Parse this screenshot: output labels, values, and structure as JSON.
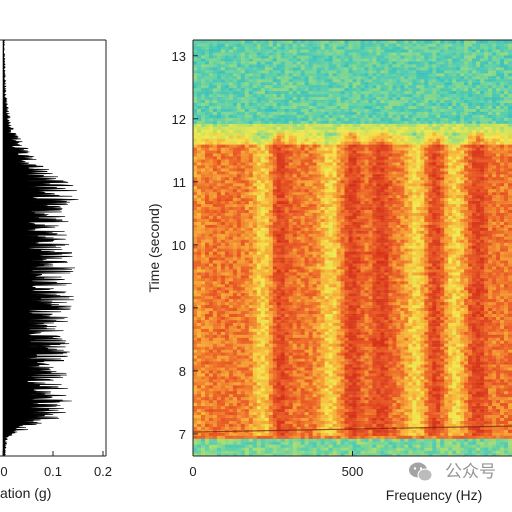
{
  "chart_data": [
    {
      "type": "line",
      "panel": "left",
      "description_of_series": "acceleration trace vs time",
      "xlabel": "ation (g)",
      "ylabel": "",
      "xlim": [
        0,
        0.2
      ],
      "ylim": [
        6.7,
        13.3
      ],
      "xticks": [
        0,
        0.1,
        0.2
      ],
      "xtick_labels": [
        "0",
        "0.1",
        "0.2"
      ],
      "envelope": {
        "t": [
          6.75,
          7.0,
          7.3,
          7.6,
          7.9,
          8.2,
          8.5,
          8.8,
          9.1,
          9.4,
          9.7,
          10.0,
          10.3,
          10.6,
          10.9,
          11.2,
          11.5,
          11.8,
          12.1,
          12.4,
          12.7,
          13.0,
          13.3
        ],
        "accel": [
          0.005,
          0.01,
          0.12,
          0.14,
          0.13,
          0.13,
          0.14,
          0.13,
          0.14,
          0.15,
          0.15,
          0.14,
          0.13,
          0.14,
          0.16,
          0.1,
          0.06,
          0.03,
          0.015,
          0.008,
          0.005,
          0.004,
          0.003
        ]
      }
    },
    {
      "type": "heatmap",
      "panel": "right",
      "xlabel": "Frequency (Hz)",
      "ylabel": "Time (second)",
      "xlim": [
        0,
        1000
      ],
      "ylim": [
        6.65,
        13.25
      ],
      "xticks": [
        0,
        500
      ],
      "xtick_labels": [
        "0",
        "500"
      ],
      "yticks": [
        7,
        8,
        9,
        10,
        11,
        12,
        13
      ],
      "ytick_labels": [
        "7",
        "8",
        "9",
        "10",
        "11",
        "12",
        "13"
      ],
      "colormap": [
        "#1fb8c8",
        "#5cd1a8",
        "#b8e060",
        "#f3e84a",
        "#f6a531",
        "#ea5520",
        "#d42a14"
      ],
      "high_energy_time_range": [
        7.0,
        11.6
      ],
      "dark_ridges_hz": [
        270,
        500,
        590,
        760,
        890
      ],
      "bright_bands_hz": [
        220,
        430,
        700,
        820
      ],
      "crack_line_at_time": 7.03
    }
  ],
  "colors": {
    "axis": "#222222",
    "trace": "#000000",
    "low_energy": "#3cc0b8",
    "high_energy": "#e2401a"
  },
  "watermark": {
    "icon": "wechat-icon",
    "text": "公众号"
  }
}
